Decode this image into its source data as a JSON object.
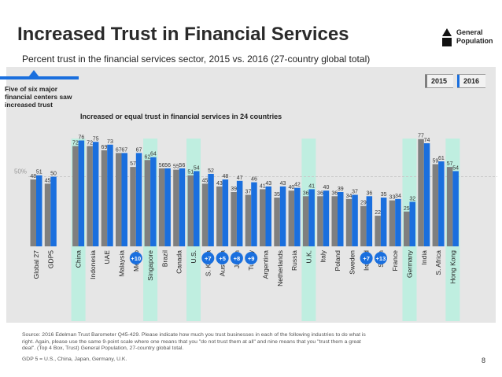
{
  "slide": {
    "title": "Increased Trust in Financial Services",
    "subtitle": "Percent trust in the financial services sector, 2015 vs. 2016 (27-country global total)",
    "legend_general_population": "General Population",
    "callout": "Five of six major financial centers saw increased trust",
    "chart_title": "Increased or equal trust in financial services in 24 countries",
    "source": "Source: 2016 Edelman Trust Barometer Q45-429. Please indicate how much you trust businesses in each of the following industries to do what is right. Again, please use the same 9-point scale where one means that you \"do not trust them at all\" and nine means that you \"trust them a great deal\". (Top 4 Box, Trust) General Population, 27-country global total.",
    "gdp_note": "GDP 5 = U.S., China, Japan, Germany, U.K.",
    "page_number": "8"
  },
  "colors": {
    "bar_2015": "#7f7f7f",
    "bar_2016": "#1a6fde",
    "highlight": "#bfeee0",
    "change_badge": "#1a6fde"
  },
  "chart_data": {
    "type": "bar",
    "categories": [
      "Global 27",
      "GDP5",
      "China",
      "Indonesia",
      "UAE",
      "Malaysia",
      "Mexico",
      "Singapore",
      "Brazil",
      "Canada",
      "U.S.",
      "S. Korea",
      "Australia",
      "Japan",
      "Turkey",
      "Argentina",
      "Netherlands",
      "Russia",
      "U.K.",
      "Italy",
      "Poland",
      "Sweden",
      "Ireland",
      "Spain",
      "France",
      "Germany",
      "India",
      "S. Africa",
      "Hong Kong"
    ],
    "series": [
      {
        "name": "2015",
        "values": [
          48,
          45,
          72,
          72,
          69,
          67,
          57,
          62,
          56,
          55,
          51,
          45,
          43,
          39,
          37,
          41,
          35,
          40,
          36,
          36,
          36,
          34,
          29,
          22,
          33,
          25,
          77,
          59,
          57
        ]
      },
      {
        "name": "2016",
        "values": [
          51,
          50,
          76,
          75,
          73,
          67,
          67,
          64,
          56,
          56,
          54,
          52,
          48,
          47,
          46,
          43,
          43,
          42,
          41,
          40,
          39,
          37,
          36,
          35,
          34,
          32,
          74,
          61,
          54
        ]
      }
    ],
    "highlighted_categories": [
      "China",
      "Singapore",
      "U.S.",
      "U.K.",
      "Germany",
      "Hong Kong"
    ],
    "change_labels": [
      {
        "category": "Mexico",
        "text": "+10"
      },
      {
        "category": "S. Korea",
        "text": "+7"
      },
      {
        "category": "Australia",
        "text": "+5"
      },
      {
        "category": "Japan",
        "text": "+8"
      },
      {
        "category": "Turkey",
        "text": "+9"
      },
      {
        "category": "Ireland",
        "text": "+7"
      },
      {
        "category": "Spain",
        "text": "+13"
      }
    ],
    "reference_line": {
      "value": 50,
      "label": "50%"
    },
    "legend": [
      "2015",
      "2016"
    ],
    "ylim": [
      0,
      90
    ]
  }
}
